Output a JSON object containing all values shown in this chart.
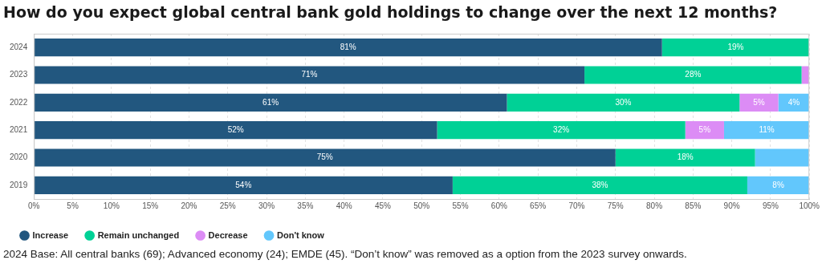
{
  "chart_data": {
    "type": "bar",
    "orientation": "horizontal",
    "stacked": true,
    "title": "How do you expect global central bank gold holdings to change over the next 12 months?",
    "categories": [
      "2024",
      "2023",
      "2022",
      "2021",
      "2020",
      "2019"
    ],
    "series": [
      {
        "name": "Increase",
        "color": "#22577f",
        "values": [
          81,
          71,
          61,
          52,
          75,
          54
        ],
        "value_labels": [
          "81%",
          "71%",
          "61%",
          "52%",
          "75%",
          "54%"
        ]
      },
      {
        "name": "Remain unchanged",
        "color": "#00d196",
        "values": [
          19,
          28,
          30,
          32,
          18,
          38
        ],
        "value_labels": [
          "19%",
          "28%",
          "30%",
          "32%",
          "18%",
          "38%"
        ]
      },
      {
        "name": "Decrease",
        "color": "#dc8cf5",
        "values": [
          0,
          1,
          5,
          5,
          0,
          0
        ],
        "value_labels": [
          null,
          null,
          "5%",
          "5%",
          null,
          null
        ]
      },
      {
        "name": "Don't know",
        "color": "#62c7fc",
        "values": [
          0,
          0,
          4,
          11,
          7,
          8
        ],
        "value_labels": [
          null,
          null,
          "4%",
          "11%",
          null,
          "8%"
        ]
      }
    ],
    "xlim": [
      0,
      100
    ],
    "xticks": [
      {
        "value": 0,
        "label": "0%"
      },
      {
        "value": 5,
        "label": "5%"
      },
      {
        "value": 10,
        "label": "10%"
      },
      {
        "value": 15,
        "label": "15%"
      },
      {
        "value": 20,
        "label": "20%"
      },
      {
        "value": 25,
        "label": "25%"
      },
      {
        "value": 30,
        "label": "30%"
      },
      {
        "value": 35,
        "label": "35%"
      },
      {
        "value": 40,
        "label": "40%"
      },
      {
        "value": 45,
        "label": "45%"
      },
      {
        "value": 50,
        "label": "50%"
      },
      {
        "value": 55,
        "label": "55%"
      },
      {
        "value": 60,
        "label": "60%"
      },
      {
        "value": 65,
        "label": "65%"
      },
      {
        "value": 70,
        "label": "70%"
      },
      {
        "value": 75,
        "label": "75%"
      },
      {
        "value": 80,
        "label": "80%"
      },
      {
        "value": 85,
        "label": "85%"
      },
      {
        "value": 90,
        "label": "90%"
      },
      {
        "value": 95,
        "label": "95%"
      },
      {
        "value": 100,
        "label": "100%"
      }
    ],
    "grid": "x",
    "legend": "bottom left",
    "annotations": [
      "2024 Base: All central banks (69); Advanced economy (24); EMDE (45). “Don’t know” was removed as a option from the 2023 survey onwards."
    ]
  }
}
